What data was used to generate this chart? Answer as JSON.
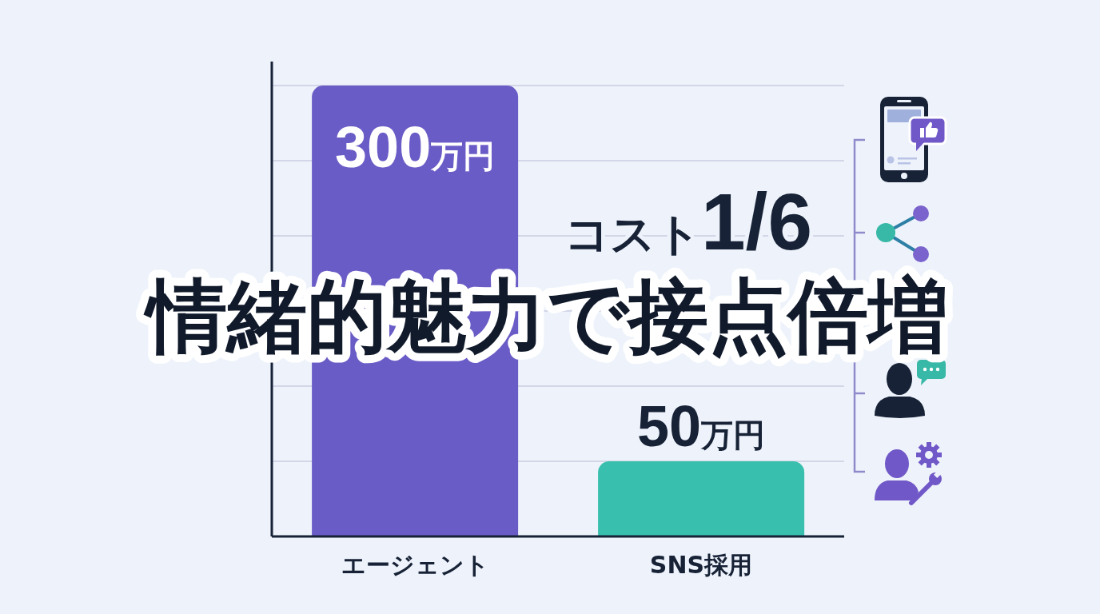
{
  "chart_data": {
    "type": "bar",
    "title": "情緒的魅力で接点倍増",
    "categories": [
      "エージェント",
      "SNS採用"
    ],
    "values": [
      300,
      50
    ],
    "colors": [
      "#6a5cc6",
      "#38bfad"
    ],
    "value_labels": [
      "300万円",
      "50万円"
    ],
    "ylim": [
      0,
      316
    ],
    "yticks": [
      {
        "value": 50,
        "label": null
      },
      {
        "value": 100,
        "label": null
      },
      {
        "value": 150,
        "label": null
      },
      {
        "value": 200,
        "label": null
      },
      {
        "value": 250,
        "label": null
      },
      {
        "value": 300,
        "label": null
      }
    ],
    "grid": "y",
    "tick_labels": "x",
    "annotations": [
      "コスト1/6"
    ]
  }
}
